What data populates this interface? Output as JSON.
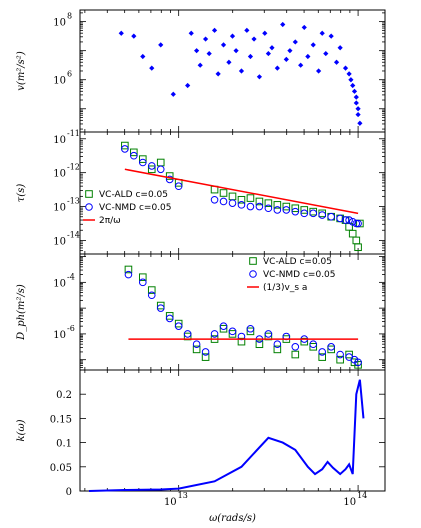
{
  "chart_data": [
    {
      "type": "scatter",
      "panel": "group-velocity",
      "ylabel": "v(m²/s²)",
      "yscale": "log",
      "ylim_log10": [
        4.2,
        8.4
      ],
      "ytick_labels": [
        {
          "value": 8,
          "base": "10",
          "exp": "8"
        },
        {
          "value": 6,
          "base": "10",
          "exp": "6"
        }
      ],
      "marker": "diamond",
      "color": "#0000ff",
      "series": [
        {
          "x_log10": [
            13.93,
            13.95,
            13.96,
            13.97,
            13.98,
            13.99,
            13.99,
            14.0,
            14.0,
            14.01,
            13.9,
            13.88,
            13.85,
            13.82,
            13.8,
            13.78,
            13.75,
            13.72,
            13.7,
            13.68,
            13.65,
            13.62,
            13.6,
            13.58,
            13.55,
            13.52,
            13.5,
            13.48,
            13.45,
            13.42,
            13.4,
            13.38,
            13.35,
            13.32,
            13.3,
            13.28,
            13.25,
            13.22,
            13.2,
            13.17,
            13.15,
            13.12,
            13.1,
            13.07,
            13.05,
            12.97,
            12.9,
            12.85,
            12.8,
            12.75,
            12.68
          ],
          "y_log10": [
            6.4,
            6.2,
            6.0,
            5.8,
            5.6,
            5.4,
            5.2,
            5.0,
            4.8,
            4.5,
            7.1,
            6.6,
            7.5,
            6.9,
            7.6,
            6.3,
            7.2,
            6.8,
            7.8,
            6.5,
            7.3,
            7.0,
            6.7,
            7.9,
            6.4,
            7.1,
            6.9,
            7.6,
            6.1,
            7.4,
            6.8,
            7.7,
            6.3,
            7.0,
            7.5,
            6.6,
            7.2,
            6.2,
            7.7,
            6.9,
            7.4,
            6.5,
            7.0,
            7.6,
            5.8,
            5.5,
            7.2,
            6.4,
            6.8,
            7.5,
            7.6
          ]
        }
      ]
    },
    {
      "type": "scatter",
      "panel": "lifetime",
      "ylabel": "τ(s)",
      "yscale": "log",
      "ylim_log10": [
        -14.4,
        -10.8
      ],
      "ytick_labels": [
        {
          "value": -11,
          "base": "10",
          "exp": "-11"
        },
        {
          "value": -12,
          "base": "10",
          "exp": "-12"
        },
        {
          "value": -13,
          "base": "10",
          "exp": "-13"
        },
        {
          "value": -14,
          "base": "10",
          "exp": "-14"
        }
      ],
      "legend_position": "bottom-left",
      "series": [
        {
          "name": "VC-ALD c=0.05",
          "marker": "square-open",
          "color": "#008000",
          "x_log10": [
            12.7,
            12.75,
            12.8,
            12.85,
            12.9,
            12.95,
            13.0,
            13.2,
            13.25,
            13.3,
            13.35,
            13.4,
            13.45,
            13.5,
            13.55,
            13.6,
            13.65,
            13.7,
            13.75,
            13.8,
            13.85,
            13.9,
            13.93,
            13.95,
            13.97,
            13.99,
            14.0,
            14.01
          ],
          "y_log10": [
            -11.2,
            -11.4,
            -11.6,
            -11.9,
            -11.7,
            -12.1,
            -12.3,
            -12.5,
            -12.6,
            -12.7,
            -12.8,
            -12.75,
            -12.85,
            -12.9,
            -12.95,
            -13.0,
            -13.05,
            -13.1,
            -13.15,
            -13.2,
            -13.3,
            -13.35,
            -13.4,
            -13.6,
            -13.8,
            -14.0,
            -14.2,
            -13.5
          ]
        },
        {
          "name": "VC-NMD c=0.05",
          "marker": "circle-open",
          "color": "#0000ff",
          "x_log10": [
            12.7,
            12.75,
            12.8,
            12.85,
            12.9,
            12.95,
            13.0,
            13.2,
            13.25,
            13.3,
            13.35,
            13.4,
            13.45,
            13.5,
            13.55,
            13.6,
            13.65,
            13.7,
            13.75,
            13.8,
            13.85,
            13.9,
            13.93,
            13.95,
            13.97,
            13.99,
            14.0
          ],
          "y_log10": [
            -11.3,
            -11.5,
            -11.7,
            -11.8,
            -11.9,
            -12.2,
            -12.4,
            -12.8,
            -12.85,
            -12.9,
            -12.95,
            -13.0,
            -13.0,
            -13.05,
            -13.1,
            -13.1,
            -13.15,
            -13.2,
            -13.2,
            -13.25,
            -13.3,
            -13.35,
            -13.4,
            -13.4,
            -13.45,
            -13.5,
            -13.5
          ]
        },
        {
          "name": "2π/ω",
          "marker": "line",
          "color": "#ff0000",
          "x_log10": [
            12.7,
            14.0
          ],
          "y_log10": [
            -11.9,
            -13.2
          ]
        }
      ]
    },
    {
      "type": "scatter",
      "panel": "diffusivity",
      "ylabel": "D_ph(m²/s)",
      "yscale": "log",
      "ylim_log10": [
        -7.4,
        -2.9
      ],
      "ytick_labels": [
        {
          "value": -4,
          "base": "10",
          "exp": "-4"
        },
        {
          "value": -6,
          "base": "10",
          "exp": "-6"
        }
      ],
      "legend_position": "top-right",
      "series": [
        {
          "name": "VC-ALD c=0.05",
          "marker": "square-open",
          "color": "#008000",
          "x_log10": [
            12.72,
            12.8,
            12.85,
            12.9,
            12.95,
            13.0,
            13.05,
            13.1,
            13.15,
            13.2,
            13.25,
            13.3,
            13.35,
            13.4,
            13.45,
            13.5,
            13.55,
            13.6,
            13.65,
            13.7,
            13.75,
            13.8,
            13.85,
            13.9,
            13.95,
            13.98,
            14.0
          ],
          "y_log10": [
            -3.5,
            -3.8,
            -4.3,
            -4.9,
            -5.3,
            -5.6,
            -6.1,
            -6.6,
            -6.9,
            -6.2,
            -5.8,
            -6.0,
            -6.3,
            -5.9,
            -6.4,
            -6.1,
            -6.6,
            -6.2,
            -6.8,
            -6.3,
            -6.5,
            -6.9,
            -6.6,
            -7.0,
            -6.8,
            -7.1,
            -7.2
          ]
        },
        {
          "name": "VC-NMD c=0.05",
          "marker": "circle-open",
          "color": "#0000ff",
          "x_log10": [
            12.72,
            12.8,
            12.85,
            12.9,
            12.95,
            13.0,
            13.05,
            13.1,
            13.15,
            13.2,
            13.25,
            13.3,
            13.35,
            13.4,
            13.45,
            13.5,
            13.55,
            13.6,
            13.65,
            13.7,
            13.75,
            13.8,
            13.85,
            13.9,
            13.95,
            13.98,
            14.0
          ],
          "y_log10": [
            -3.7,
            -4.0,
            -4.5,
            -5.0,
            -5.4,
            -5.7,
            -6.0,
            -6.4,
            -6.7,
            -6.0,
            -5.7,
            -5.9,
            -6.1,
            -5.8,
            -6.2,
            -6.0,
            -6.4,
            -6.1,
            -6.5,
            -6.2,
            -6.4,
            -6.7,
            -6.5,
            -6.8,
            -6.9,
            -7.0,
            -7.1
          ]
        },
        {
          "name": "(1/3)v_s a",
          "marker": "line",
          "color": "#ff0000",
          "x_log10": [
            12.72,
            14.0
          ],
          "y_log10": [
            -6.2,
            -6.2
          ]
        }
      ]
    },
    {
      "type": "line",
      "panel": "k-accumulation",
      "ylabel": "k(ω)",
      "ylim": [
        0,
        0.25
      ],
      "yticks": [
        "0",
        "0.05",
        "0.1",
        "0.15",
        "0.2"
      ],
      "xlabel": "ω(rads/s)",
      "xscale": "log",
      "xlim_log10": [
        12.45,
        14.15
      ],
      "xtick_labels": [
        {
          "value": 13,
          "base": "10",
          "exp": "13"
        },
        {
          "value": 14,
          "base": "10",
          "exp": "14"
        }
      ],
      "series": [
        {
          "color": "#0000ff",
          "x_log10": [
            12.5,
            12.7,
            12.9,
            13.0,
            13.2,
            13.35,
            13.5,
            13.58,
            13.65,
            13.72,
            13.76,
            13.8,
            13.83,
            13.86,
            13.9,
            13.93,
            13.95,
            13.97,
            13.99,
            14.01,
            14.03
          ],
          "y": [
            0.0,
            0.002,
            0.003,
            0.005,
            0.02,
            0.05,
            0.11,
            0.1,
            0.085,
            0.05,
            0.035,
            0.045,
            0.06,
            0.048,
            0.035,
            0.045,
            0.055,
            0.035,
            0.2,
            0.23,
            0.15
          ]
        }
      ]
    }
  ]
}
